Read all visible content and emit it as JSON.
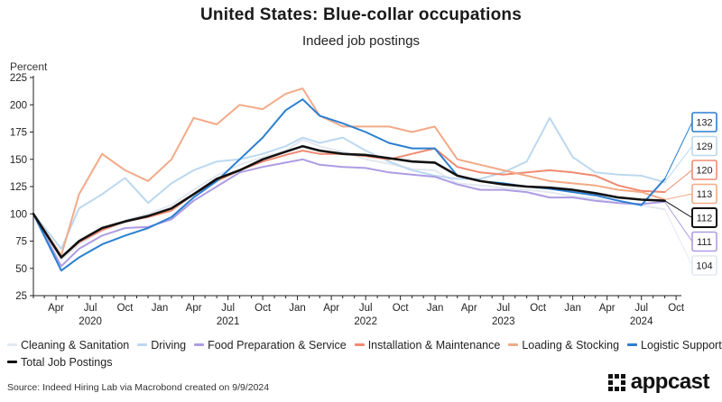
{
  "header": {
    "title": "United States: Blue-collar occupations",
    "subtitle": "Indeed job postings"
  },
  "footer": {
    "source": "Source: Indeed Hiring Lab via Macrobond created on 9/9/2024",
    "logo_text": "appcast"
  },
  "chart_data": {
    "type": "line",
    "ylabel": "Percent",
    "ylim": [
      25,
      225
    ],
    "yticks": [
      25,
      50,
      75,
      100,
      125,
      150,
      175,
      200,
      225
    ],
    "grid": false,
    "legend_position": "bottom",
    "x_range": [
      "2020-02-01",
      "2024-10-15"
    ],
    "x_month_ticks": [
      {
        "label": "Apr",
        "date": "2020-04-01"
      },
      {
        "label": "Jul",
        "date": "2020-07-01"
      },
      {
        "label": "Oct",
        "date": "2020-10-01"
      },
      {
        "label": "Jan",
        "date": "2021-01-01"
      },
      {
        "label": "Apr",
        "date": "2021-04-01"
      },
      {
        "label": "Jul",
        "date": "2021-07-01"
      },
      {
        "label": "Oct",
        "date": "2021-10-01"
      },
      {
        "label": "Jan",
        "date": "2022-01-01"
      },
      {
        "label": "Apr",
        "date": "2022-04-01"
      },
      {
        "label": "Jul",
        "date": "2022-07-01"
      },
      {
        "label": "Oct",
        "date": "2022-10-01"
      },
      {
        "label": "Jan",
        "date": "2023-01-01"
      },
      {
        "label": "Apr",
        "date": "2023-04-01"
      },
      {
        "label": "Jul",
        "date": "2023-07-01"
      },
      {
        "label": "Oct",
        "date": "2023-10-01"
      },
      {
        "label": "Jan",
        "date": "2024-01-01"
      },
      {
        "label": "Apr",
        "date": "2024-04-01"
      },
      {
        "label": "Jul",
        "date": "2024-07-01"
      },
      {
        "label": "Oct",
        "date": "2024-10-01"
      }
    ],
    "x_year_labels": [
      {
        "label": "2020",
        "date": "2020-07-01"
      },
      {
        "label": "2021",
        "date": "2021-07-01"
      },
      {
        "label": "2022",
        "date": "2022-07-01"
      },
      {
        "label": "2023",
        "date": "2023-07-01"
      },
      {
        "label": "2024",
        "date": "2024-07-01"
      }
    ],
    "x": [
      "2020-02-01",
      "2020-04-15",
      "2020-06-01",
      "2020-08-01",
      "2020-10-01",
      "2020-12-01",
      "2021-02-01",
      "2021-04-01",
      "2021-06-01",
      "2021-08-01",
      "2021-10-01",
      "2021-12-01",
      "2022-01-15",
      "2022-03-01",
      "2022-05-01",
      "2022-07-01",
      "2022-09-01",
      "2022-11-01",
      "2022-12-31",
      "2023-03-01",
      "2023-05-01",
      "2023-07-01",
      "2023-09-01",
      "2023-11-01",
      "2024-01-01",
      "2024-03-01",
      "2024-05-01",
      "2024-07-01",
      "2024-09-01"
    ],
    "series": [
      {
        "name": "Cleaning & Sanitation",
        "color": "#e3e8f0",
        "end_label": "104",
        "values": [
          100,
          58,
          72,
          85,
          94,
          100,
          108,
          122,
          135,
          145,
          152,
          158,
          168,
          162,
          157,
          150,
          146,
          141,
          140,
          128,
          126,
          124,
          122,
          120,
          116,
          114,
          110,
          108,
          104
        ]
      },
      {
        "name": "Driving",
        "color": "#bcd8ef",
        "end_label": "129",
        "values": [
          100,
          68,
          105,
          118,
          133,
          110,
          128,
          140,
          148,
          150,
          155,
          162,
          170,
          165,
          170,
          158,
          148,
          140,
          135,
          132,
          132,
          138,
          148,
          188,
          152,
          138,
          136,
          135,
          129
        ]
      },
      {
        "name": "Food Preparation & Service",
        "color": "#ad9ce2",
        "end_label": "111",
        "values": [
          100,
          52,
          68,
          80,
          87,
          88,
          95,
          112,
          125,
          138,
          143,
          147,
          150,
          145,
          143,
          142,
          138,
          136,
          134,
          127,
          122,
          122,
          120,
          115,
          115,
          112,
          110,
          109,
          111
        ]
      },
      {
        "name": "Installation & Maintenance",
        "color": "#f08a72",
        "end_label": "120",
        "values": [
          100,
          60,
          74,
          85,
          93,
          97,
          103,
          118,
          130,
          140,
          148,
          154,
          158,
          155,
          155,
          153,
          150,
          155,
          160,
          143,
          138,
          136,
          138,
          140,
          138,
          135,
          126,
          121,
          120
        ]
      },
      {
        "name": "Loading & Stocking",
        "color": "#f2aa88",
        "end_label": "113",
        "values": [
          100,
          62,
          118,
          155,
          140,
          130,
          150,
          188,
          182,
          200,
          196,
          210,
          215,
          190,
          180,
          180,
          180,
          175,
          180,
          150,
          145,
          140,
          135,
          130,
          128,
          126,
          122,
          120,
          113
        ]
      },
      {
        "name": "Logistic Support",
        "color": "#2b7fd1",
        "end_label": "132",
        "values": [
          100,
          48,
          60,
          72,
          80,
          87,
          97,
          115,
          130,
          150,
          170,
          195,
          205,
          190,
          183,
          175,
          165,
          160,
          160,
          135,
          130,
          128,
          125,
          123,
          120,
          117,
          112,
          108,
          132
        ]
      },
      {
        "name": "Total Job Postings",
        "color": "#111111",
        "end_label": "112",
        "values": [
          100,
          60,
          75,
          87,
          93,
          98,
          105,
          118,
          132,
          140,
          150,
          157,
          162,
          158,
          155,
          154,
          151,
          148,
          147,
          135,
          130,
          127,
          125,
          124,
          122,
          119,
          115,
          113,
          112
        ]
      }
    ]
  }
}
